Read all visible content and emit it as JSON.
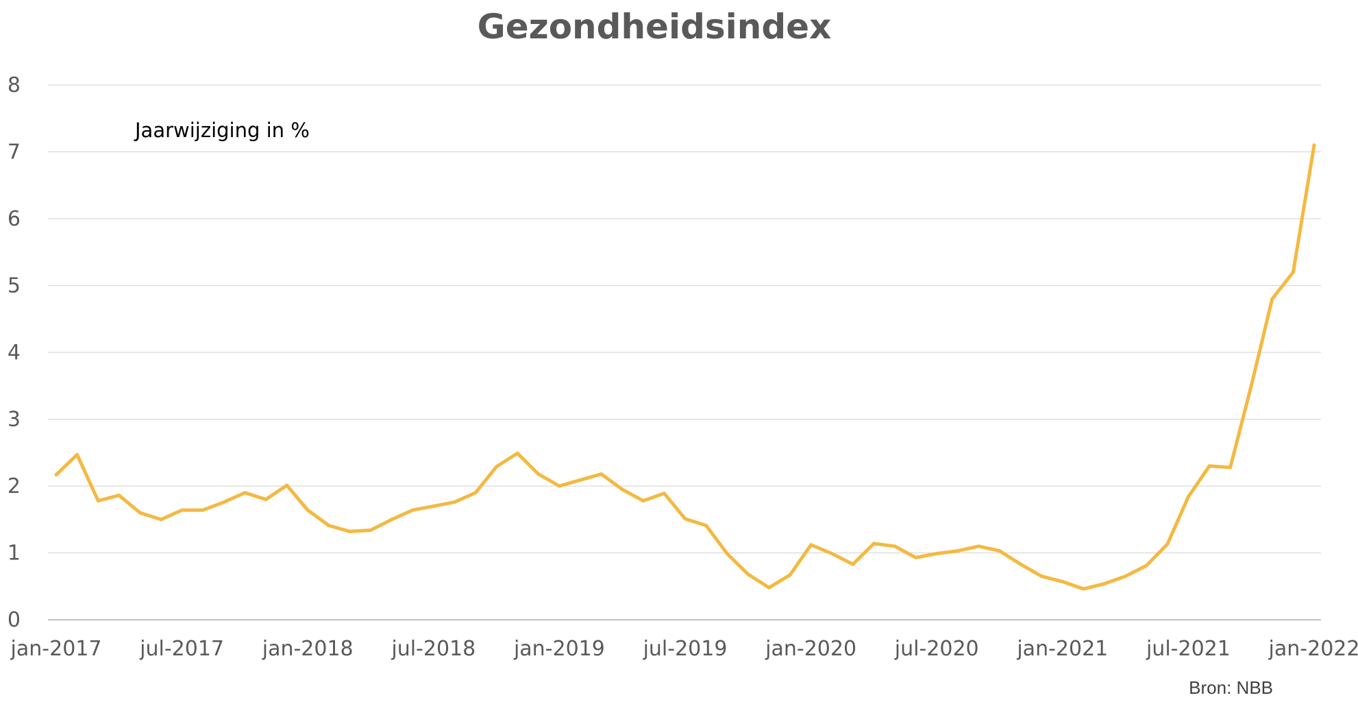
{
  "chart_data": {
    "type": "line",
    "title": "Gezondheidsindex",
    "annotation": "Jaarwijziging in %",
    "source": "Bron: NBB",
    "xlabel": "",
    "ylabel": "",
    "ylim": [
      0,
      8
    ],
    "yticks": [
      "0",
      "1",
      "2",
      "3",
      "4",
      "5",
      "6",
      "7",
      "8"
    ],
    "xticks": [
      "jan-2017",
      "jul-2017",
      "jan-2018",
      "jul-2018",
      "jan-2019",
      "jul-2019",
      "jan-2020",
      "jul-2020",
      "jan-2021",
      "jul-2021",
      "jan-2022"
    ],
    "grid": true,
    "legend": "none",
    "series": [
      {
        "color": "#F4B942",
        "x": [
          "jan-2017",
          "feb-2017",
          "mrt-2017",
          "apr-2017",
          "mei-2017",
          "jun-2017",
          "jul-2017",
          "aug-2017",
          "sep-2017",
          "okt-2017",
          "nov-2017",
          "dec-2017",
          "jan-2018",
          "feb-2018",
          "mrt-2018",
          "apr-2018",
          "mei-2018",
          "jun-2018",
          "jul-2018",
          "aug-2018",
          "sep-2018",
          "okt-2018",
          "nov-2018",
          "dec-2018",
          "jan-2019",
          "feb-2019",
          "mrt-2019",
          "apr-2019",
          "mei-2019",
          "jun-2019",
          "jul-2019",
          "aug-2019",
          "sep-2019",
          "okt-2019",
          "nov-2019",
          "dec-2019",
          "jan-2020",
          "feb-2020",
          "mrt-2020",
          "apr-2020",
          "mei-2020",
          "jun-2020",
          "jul-2020",
          "aug-2020",
          "sep-2020",
          "okt-2020",
          "nov-2020",
          "dec-2020",
          "jan-2021",
          "feb-2021",
          "mrt-2021",
          "apr-2021",
          "mei-2021",
          "jun-2021",
          "jul-2021",
          "aug-2021",
          "sep-2021",
          "okt-2021",
          "nov-2021",
          "dec-2021",
          "jan-2022"
        ],
        "values": [
          2.17,
          2.47,
          1.78,
          1.86,
          1.6,
          1.5,
          1.64,
          1.64,
          1.76,
          1.9,
          1.8,
          2.01,
          1.64,
          1.41,
          1.32,
          1.34,
          1.5,
          1.64,
          1.7,
          1.76,
          1.9,
          2.29,
          2.49,
          2.18,
          2.0,
          2.09,
          2.18,
          1.95,
          1.78,
          1.89,
          1.51,
          1.41,
          0.99,
          0.68,
          0.48,
          0.67,
          1.12,
          0.99,
          0.83,
          1.14,
          1.1,
          0.93,
          0.99,
          1.03,
          1.1,
          1.03,
          0.83,
          0.65,
          0.57,
          0.46,
          0.54,
          0.65,
          0.81,
          1.13,
          1.84,
          2.3,
          2.28,
          3.5,
          4.8,
          5.2,
          7.1
        ]
      }
    ]
  }
}
